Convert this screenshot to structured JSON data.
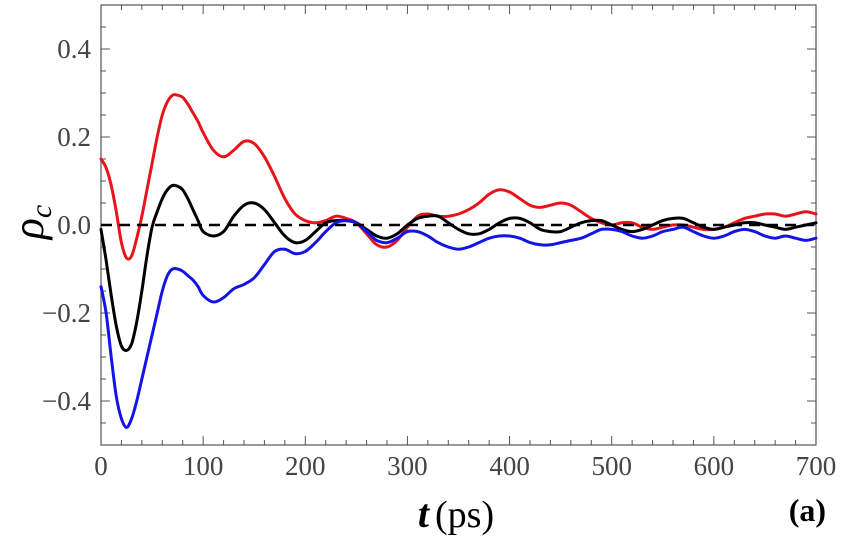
{
  "chart_data": {
    "type": "line",
    "title": "",
    "panel_label": "(a)",
    "xlabel": {
      "symbol": "t",
      "unit": "(ps)"
    },
    "ylabel": {
      "symbol": "ρ",
      "subscript": "c"
    },
    "xlim": [
      0,
      700
    ],
    "ylim": [
      -0.5,
      0.5
    ],
    "xticks": [
      0,
      100,
      200,
      300,
      400,
      500,
      600,
      700
    ],
    "xtick_labels": [
      "0",
      "100",
      "200",
      "300",
      "400",
      "500",
      "600",
      "700"
    ],
    "yticks": [
      -0.4,
      -0.2,
      0.0,
      0.2,
      0.4
    ],
    "ytick_labels": [
      "−0.4",
      "−0.2",
      "0.0",
      "0.2",
      "0.4"
    ],
    "grid": false,
    "reference_line": {
      "y": 0.0,
      "style": "dashed",
      "color": "#000000"
    },
    "series": [
      {
        "name": "red",
        "color": "#e8141c",
        "x": [
          0,
          5,
          10,
          15,
          20,
          25,
          30,
          35,
          40,
          45,
          50,
          55,
          60,
          65,
          70,
          75,
          80,
          85,
          90,
          95,
          100,
          110,
          120,
          130,
          140,
          150,
          160,
          170,
          180,
          190,
          200,
          210,
          220,
          230,
          240,
          250,
          260,
          270,
          280,
          290,
          300,
          310,
          320,
          330,
          340,
          350,
          360,
          370,
          380,
          390,
          400,
          410,
          420,
          430,
          440,
          450,
          460,
          470,
          480,
          490,
          500,
          510,
          520,
          530,
          540,
          550,
          560,
          570,
          580,
          590,
          600,
          610,
          620,
          630,
          640,
          650,
          660,
          670,
          680,
          690,
          700
        ],
        "values": [
          0.15,
          0.13,
          0.09,
          0.03,
          -0.04,
          -0.075,
          -0.07,
          -0.03,
          0.02,
          0.08,
          0.14,
          0.2,
          0.25,
          0.28,
          0.295,
          0.295,
          0.29,
          0.275,
          0.255,
          0.235,
          0.21,
          0.17,
          0.155,
          0.17,
          0.19,
          0.185,
          0.155,
          0.11,
          0.06,
          0.025,
          0.01,
          0.005,
          0.01,
          0.02,
          0.015,
          0.005,
          -0.02,
          -0.045,
          -0.05,
          -0.035,
          -0.005,
          0.02,
          0.025,
          0.02,
          0.02,
          0.025,
          0.035,
          0.05,
          0.07,
          0.08,
          0.075,
          0.06,
          0.045,
          0.04,
          0.045,
          0.05,
          0.045,
          0.03,
          0.015,
          0.005,
          0.0,
          0.005,
          0.005,
          -0.005,
          -0.01,
          -0.005,
          0.0,
          0.0,
          -0.005,
          -0.01,
          -0.01,
          -0.005,
          0.005,
          0.015,
          0.02,
          0.025,
          0.025,
          0.02,
          0.025,
          0.03,
          0.025
        ]
      },
      {
        "name": "black",
        "color": "#000000",
        "x": [
          0,
          5,
          10,
          15,
          20,
          25,
          30,
          35,
          40,
          45,
          50,
          55,
          60,
          65,
          70,
          75,
          80,
          85,
          90,
          95,
          100,
          110,
          120,
          130,
          140,
          150,
          160,
          170,
          180,
          190,
          200,
          210,
          220,
          230,
          240,
          250,
          260,
          270,
          280,
          290,
          300,
          310,
          320,
          330,
          340,
          350,
          360,
          370,
          380,
          390,
          400,
          410,
          420,
          430,
          440,
          450,
          460,
          470,
          480,
          490,
          500,
          510,
          520,
          530,
          540,
          550,
          560,
          570,
          580,
          590,
          600,
          610,
          620,
          630,
          640,
          650,
          660,
          670,
          680,
          690,
          700
        ],
        "values": [
          -0.01,
          -0.08,
          -0.16,
          -0.23,
          -0.275,
          -0.285,
          -0.27,
          -0.22,
          -0.15,
          -0.07,
          -0.005,
          0.03,
          0.06,
          0.08,
          0.09,
          0.088,
          0.08,
          0.06,
          0.035,
          0.01,
          -0.015,
          -0.025,
          -0.015,
          0.02,
          0.045,
          0.05,
          0.035,
          0.005,
          -0.025,
          -0.04,
          -0.035,
          -0.015,
          0.005,
          0.01,
          0.01,
          0.005,
          -0.01,
          -0.025,
          -0.03,
          -0.02,
          0.0,
          0.015,
          0.02,
          0.02,
          0.005,
          -0.01,
          -0.02,
          -0.02,
          -0.01,
          0.005,
          0.015,
          0.015,
          0.005,
          -0.01,
          -0.015,
          -0.015,
          -0.005,
          0.005,
          0.01,
          0.01,
          0.0,
          -0.01,
          -0.015,
          -0.01,
          0.0,
          0.01,
          0.015,
          0.015,
          0.005,
          -0.005,
          -0.01,
          -0.005,
          0.0,
          0.005,
          0.005,
          0.0,
          -0.005,
          -0.01,
          -0.005,
          0.0,
          0.005
        ]
      },
      {
        "name": "blue",
        "color": "#1414e6",
        "x": [
          0,
          5,
          10,
          15,
          20,
          25,
          30,
          35,
          40,
          45,
          50,
          55,
          60,
          65,
          70,
          75,
          80,
          85,
          90,
          95,
          100,
          110,
          120,
          130,
          140,
          150,
          160,
          170,
          180,
          190,
          200,
          210,
          220,
          230,
          240,
          250,
          260,
          270,
          280,
          290,
          300,
          310,
          320,
          330,
          340,
          350,
          360,
          370,
          380,
          390,
          400,
          410,
          420,
          430,
          440,
          450,
          460,
          470,
          480,
          490,
          500,
          510,
          520,
          530,
          540,
          550,
          560,
          570,
          580,
          590,
          600,
          610,
          620,
          630,
          640,
          650,
          660,
          670,
          680,
          690,
          700
        ],
        "values": [
          -0.14,
          -0.2,
          -0.3,
          -0.39,
          -0.44,
          -0.46,
          -0.44,
          -0.4,
          -0.35,
          -0.3,
          -0.25,
          -0.2,
          -0.15,
          -0.115,
          -0.1,
          -0.1,
          -0.105,
          -0.115,
          -0.125,
          -0.14,
          -0.16,
          -0.175,
          -0.165,
          -0.145,
          -0.135,
          -0.12,
          -0.09,
          -0.06,
          -0.055,
          -0.065,
          -0.06,
          -0.04,
          -0.015,
          0.005,
          0.01,
          0.005,
          -0.015,
          -0.035,
          -0.04,
          -0.03,
          -0.015,
          -0.015,
          -0.025,
          -0.04,
          -0.05,
          -0.055,
          -0.05,
          -0.04,
          -0.03,
          -0.025,
          -0.025,
          -0.03,
          -0.04,
          -0.045,
          -0.045,
          -0.04,
          -0.035,
          -0.03,
          -0.02,
          -0.01,
          -0.01,
          -0.015,
          -0.025,
          -0.03,
          -0.025,
          -0.015,
          -0.01,
          -0.005,
          -0.015,
          -0.025,
          -0.03,
          -0.025,
          -0.015,
          -0.01,
          -0.015,
          -0.025,
          -0.03,
          -0.025,
          -0.03,
          -0.035,
          -0.03
        ]
      }
    ]
  }
}
